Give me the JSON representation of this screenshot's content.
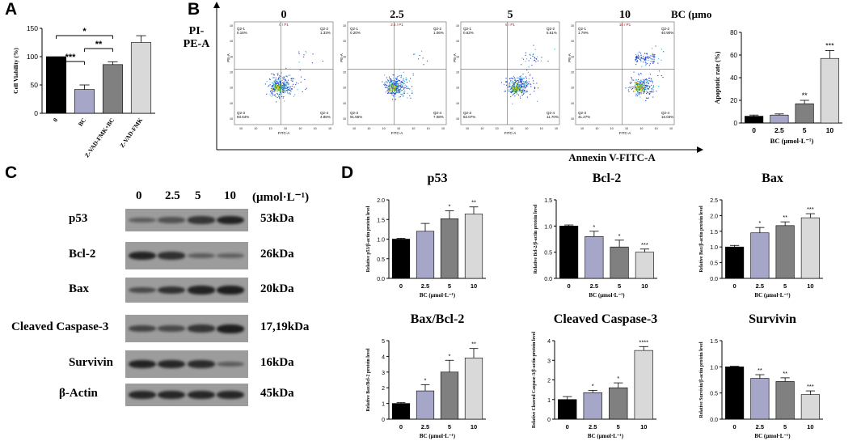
{
  "panels": {
    "a": "A",
    "b": "B",
    "c": "C",
    "d": "D"
  },
  "chart_data": [
    {
      "id": "A",
      "type": "bar",
      "ylabel": "Cell Viability (%)",
      "categories": [
        "0",
        "BC",
        "Z-VAD-FMK+BC",
        "Z-VAD-FMK"
      ],
      "values": [
        100,
        42,
        86,
        125
      ],
      "errors": [
        0,
        8,
        5,
        12
      ],
      "ylim": [
        0,
        150
      ],
      "yticks": [
        "0",
        "50",
        "100",
        "150"
      ],
      "colors": [
        "#000000",
        "#a6a6c8",
        "#808080",
        "#d9d9d9"
      ],
      "significance": [
        {
          "from": 0,
          "to": 1,
          "label": "***"
        },
        {
          "from": 1,
          "to": 2,
          "label": "**"
        },
        {
          "from": 0,
          "to": 2,
          "label": "*"
        }
      ]
    },
    {
      "id": "B-apoptotic",
      "type": "bar",
      "ylabel": "Apoptotic rate (%)",
      "xlabel": "BC (μmol·L⁻¹)",
      "categories": [
        "0",
        "2.5",
        "5",
        "10"
      ],
      "values": [
        6,
        7,
        17,
        57
      ],
      "errors": [
        1,
        1,
        3,
        7
      ],
      "ylim": [
        0,
        80
      ],
      "yticks": [
        "0",
        "20",
        "40",
        "60",
        "80"
      ],
      "colors": [
        "#000000",
        "#a6a6c8",
        "#808080",
        "#d9d9d9"
      ],
      "stars": [
        "",
        "",
        "**",
        "***"
      ]
    },
    {
      "id": "D-p53",
      "type": "bar",
      "title": "p53",
      "ylabel": "Relative p53/β-actin protein level",
      "xlabel": "BC (μmol·L⁻¹)",
      "categories": [
        "0",
        "2.5",
        "5",
        "10"
      ],
      "values": [
        1.0,
        1.2,
        1.52,
        1.64
      ],
      "errors": [
        0.02,
        0.2,
        0.2,
        0.18
      ],
      "ylim": [
        0,
        2.0
      ],
      "yticks": [
        "0.0",
        "0.5",
        "1.0",
        "1.5",
        "2.0"
      ],
      "colors": [
        "#000000",
        "#a6a6c8",
        "#808080",
        "#d9d9d9"
      ],
      "stars": [
        "",
        "",
        "*",
        "**"
      ]
    },
    {
      "id": "D-Bcl2",
      "type": "bar",
      "title": "Bcl-2",
      "ylabel": "Relative Bcl-2/β-actin protein level",
      "xlabel": "BC (μmol·L⁻¹)",
      "categories": [
        "0",
        "2.5",
        "5",
        "10"
      ],
      "values": [
        1.0,
        0.8,
        0.6,
        0.5
      ],
      "errors": [
        0.02,
        0.1,
        0.13,
        0.06
      ],
      "ylim": [
        0,
        1.5
      ],
      "yticks": [
        "0.0",
        "0.5",
        "1.0",
        "1.5"
      ],
      "colors": [
        "#000000",
        "#a6a6c8",
        "#808080",
        "#d9d9d9"
      ],
      "stars": [
        "",
        "*",
        "*",
        "***"
      ]
    },
    {
      "id": "D-Bax",
      "type": "bar",
      "title": "Bax",
      "ylabel": "Relative Bax/β-actin protein level",
      "xlabel": "BC (μmol·L⁻¹)",
      "categories": [
        "0",
        "2.5",
        "5",
        "10"
      ],
      "values": [
        1.0,
        1.45,
        1.68,
        1.93
      ],
      "errors": [
        0.05,
        0.17,
        0.12,
        0.13
      ],
      "ylim": [
        0,
        2.5
      ],
      "yticks": [
        "0.0",
        "0.5",
        "1.0",
        "1.5",
        "2.0",
        "2.5"
      ],
      "colors": [
        "#000000",
        "#a6a6c8",
        "#808080",
        "#d9d9d9"
      ],
      "stars": [
        "",
        "*",
        "**",
        "***"
      ]
    },
    {
      "id": "D-BaxBcl2",
      "type": "bar",
      "title": "Bax/Bcl-2",
      "ylabel": "Relative Bax/Bcl-2 protein level",
      "xlabel": "BC (μmol·L⁻¹)",
      "categories": [
        "0",
        "2.5",
        "5",
        "10"
      ],
      "values": [
        1.0,
        1.8,
        3.0,
        3.9
      ],
      "errors": [
        0.05,
        0.4,
        0.75,
        0.6
      ],
      "ylim": [
        0,
        5
      ],
      "yticks": [
        "0",
        "1",
        "2",
        "3",
        "4",
        "5"
      ],
      "colors": [
        "#000000",
        "#a6a6c8",
        "#808080",
        "#d9d9d9"
      ],
      "stars": [
        "",
        "*",
        "*",
        "**"
      ]
    },
    {
      "id": "D-Casp3",
      "type": "bar",
      "title": "Cleaved Caspase-3",
      "ylabel": "Relative Cleaved Caspase-3/β-actin protein level",
      "xlabel": "BC (μmol·L⁻¹)",
      "categories": [
        "0",
        "2.5",
        "5",
        "10"
      ],
      "values": [
        1.0,
        1.35,
        1.6,
        3.5
      ],
      "errors": [
        0.15,
        0.12,
        0.25,
        0.2
      ],
      "ylim": [
        0,
        4
      ],
      "yticks": [
        "0",
        "1",
        "2",
        "3",
        "4"
      ],
      "colors": [
        "#000000",
        "#a6a6c8",
        "#808080",
        "#d9d9d9"
      ],
      "stars": [
        "",
        "*",
        "*",
        "****"
      ]
    },
    {
      "id": "D-Survivin",
      "type": "bar",
      "title": "Survivin",
      "ylabel": "Relative Survivin/β-actin protein level",
      "xlabel": "BC (μmol·L⁻¹)",
      "categories": [
        "0",
        "2.5",
        "5",
        "10"
      ],
      "values": [
        1.0,
        0.78,
        0.72,
        0.47
      ],
      "errors": [
        0.01,
        0.07,
        0.07,
        0.07
      ],
      "ylim": [
        0,
        1.5
      ],
      "yticks": [
        "0.0",
        "0.5",
        "1.0",
        "1.5"
      ],
      "colors": [
        "#000000",
        "#a6a6c8",
        "#808080",
        "#d9d9d9"
      ],
      "stars": [
        "",
        "**",
        "**",
        "***"
      ]
    }
  ],
  "flow": {
    "yaxis_title": "PI-\nPE-A",
    "xaxis_title": "Annexin V-FITC-A",
    "unit": "BC (μmol·L⁻¹)",
    "x_param": "FITC-A",
    "y_param": "PE-A",
    "plots": [
      {
        "label": "0",
        "gate": "0 / P1",
        "q1": "0.16%",
        "q2": "1.33%",
        "q3": "93.64%",
        "q4": "4.85%",
        "q1n": "Q2-1",
        "q2n": "Q2-2",
        "q3n": "Q2-3",
        "q4n": "Q2-4"
      },
      {
        "label": "2.5",
        "gate": "2.5 / P1",
        "q1": "0.20%",
        "q2": "1.06%",
        "q3": "91.66%",
        "q4": "7.08%",
        "q1n": "Q2-1",
        "q2n": "Q2-2",
        "q3n": "Q2-3",
        "q4n": "Q2-4"
      },
      {
        "label": "5",
        "gate": "5 / P1",
        "q1": "0.62%",
        "q2": "5.61%",
        "q3": "82.07%",
        "q4": "11.70%",
        "q1n": "Q2-1",
        "q2n": "Q2-2",
        "q3n": "Q2-3",
        "q4n": "Q2-4"
      },
      {
        "label": "10",
        "gate": "10 / P1",
        "q1": "1.79%",
        "q2": "40.90%",
        "q3": "41.27%",
        "q4": "16.03%",
        "q1n": "Q2-1",
        "q2n": "Q2-2",
        "q3n": "Q2-3",
        "q4n": "Q2-4"
      }
    ]
  },
  "western": {
    "concentrations": [
      "0",
      "2.5",
      "5",
      "10"
    ],
    "unit": "(μmol·L⁻¹)",
    "rows": [
      {
        "label": "p53",
        "kda": "53kDa",
        "intensity": [
          0.35,
          0.45,
          0.75,
          0.95
        ]
      },
      {
        "label": "Bcl-2",
        "kda": "26kDa",
        "intensity": [
          0.95,
          0.8,
          0.35,
          0.3
        ]
      },
      {
        "label": "Bax",
        "kda": "20kDa",
        "intensity": [
          0.55,
          0.8,
          0.95,
          1.0
        ]
      },
      {
        "label": "Cleaved Caspase-3",
        "kda": "17,19kDa",
        "intensity": [
          0.6,
          0.55,
          0.75,
          1.0
        ]
      },
      {
        "label": "Survivin",
        "kda": "16kDa",
        "intensity": [
          0.95,
          0.9,
          0.85,
          0.35
        ]
      },
      {
        "label": "β-Actin",
        "kda": "45kDa",
        "intensity": [
          0.9,
          0.9,
          0.9,
          0.9
        ]
      }
    ]
  }
}
